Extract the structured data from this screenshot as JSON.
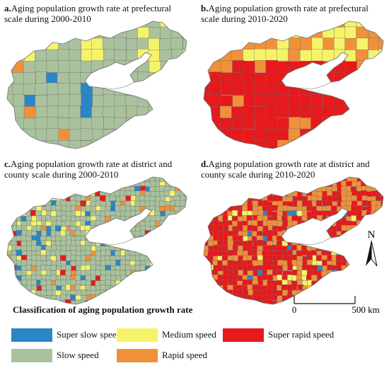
{
  "colors": {
    "super_slow": "#2a86c6",
    "slow": "#a9c29d",
    "medium": "#f6f36a",
    "rapid": "#f0913a",
    "super_rapid": "#e6191c",
    "border": "#6e6e6e"
  },
  "panels": {
    "a": {
      "letter": "a.",
      "title": "Aging population growth rate at prefectural scale during 2000-2010"
    },
    "b": {
      "letter": "b.",
      "title": "Aging population growth rate at prefectural scale during 2010-2020"
    },
    "c": {
      "letter": "c.",
      "title": "Aging population growth rate at district and county scale during 2000-2010"
    },
    "d": {
      "letter": "d.",
      "title": "Aging population growth rate at district and county scale during 2010-2020"
    }
  },
  "legend": {
    "title": "Classification of aging population growth rate",
    "items": [
      {
        "label": "Super slow speed",
        "color": "#2a86c6"
      },
      {
        "label": "Medium speed",
        "color": "#f6f36a"
      },
      {
        "label": "Super rapid speed",
        "color": "#e6191c"
      },
      {
        "label": "Slow speed",
        "color": "#a9c29d"
      },
      {
        "label": "Rapid speed",
        "color": "#f0913a"
      }
    ]
  },
  "north_arrow": {
    "label": "N"
  },
  "scale_bar": {
    "start": "0",
    "end": "500 km"
  }
}
